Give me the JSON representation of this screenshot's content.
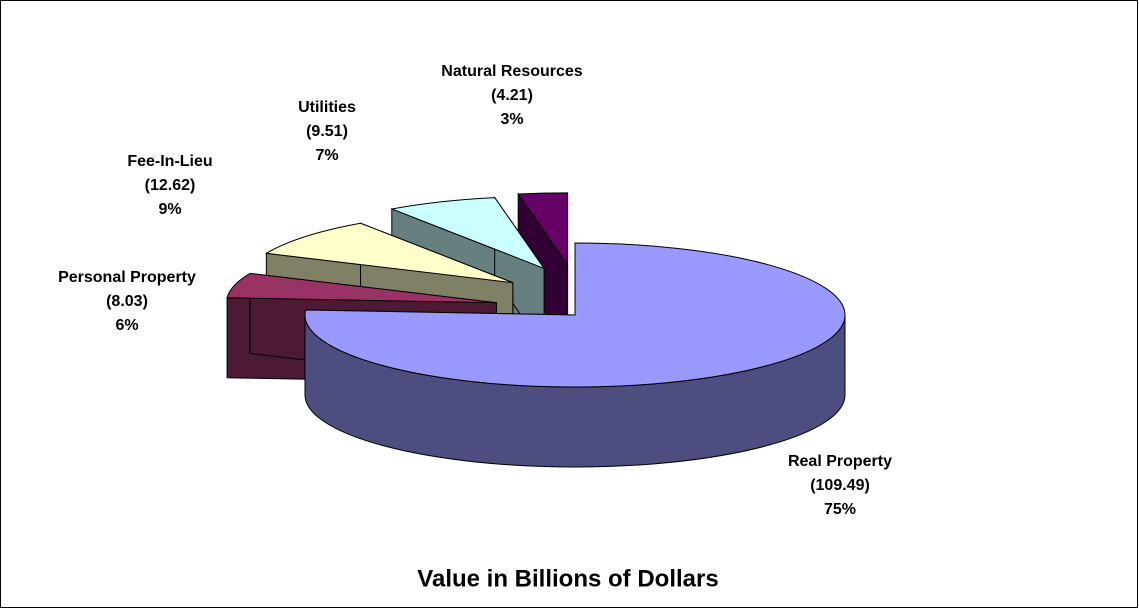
{
  "chart_data": {
    "type": "pie",
    "title": "Value in Billions of Dollars",
    "categories": [
      "Real Property",
      "Personal Property",
      "Fee-In-Lieu",
      "Utilities",
      "Natural Resources"
    ],
    "values": [
      109.49,
      8.03,
      12.62,
      9.51,
      4.21
    ],
    "value_labels": [
      "(109.49)",
      "(8.03)",
      "(12.62)",
      "(9.51)",
      "(4.21)"
    ],
    "percent_labels": [
      "75%",
      "6%",
      "9%",
      "7%",
      "3%"
    ],
    "colors": [
      "#9999ff",
      "#993366",
      "#ffffcc",
      "#ccffff",
      "#660066"
    ]
  }
}
